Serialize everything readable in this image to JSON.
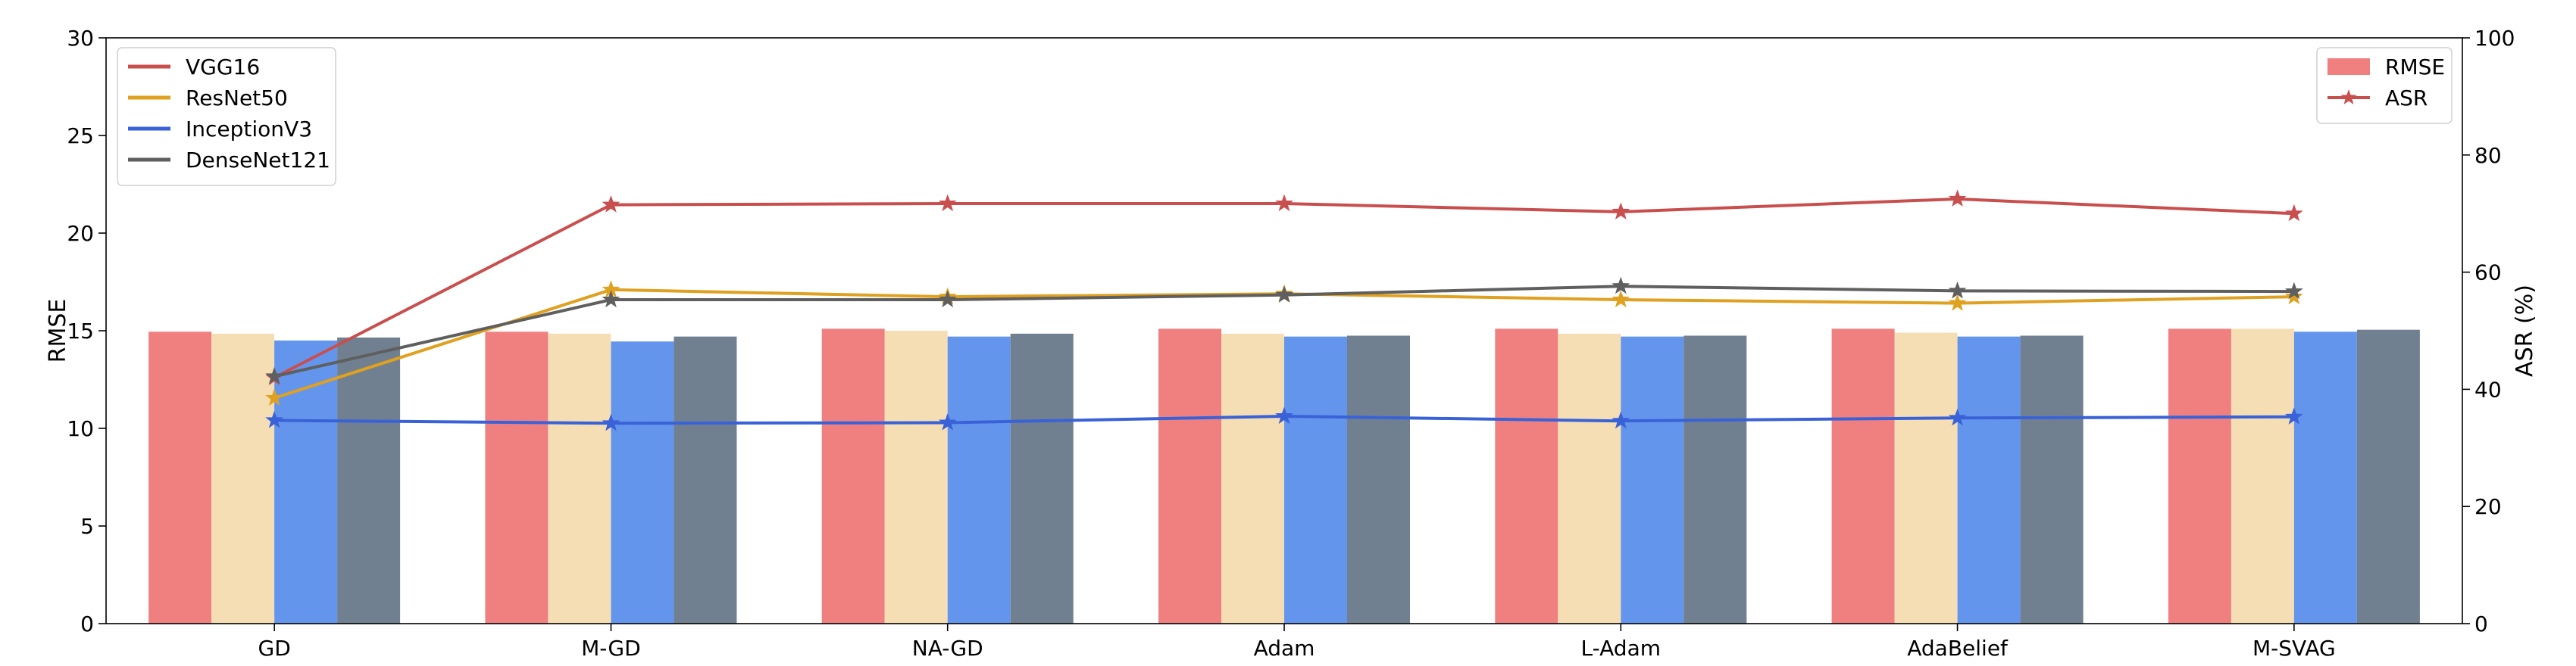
{
  "chart_data": {
    "type": "bar",
    "categories": [
      "GD",
      "M-GD",
      "NA-GD",
      "Adam",
      "L-Adam",
      "AdaBelief",
      "M-SVAG"
    ],
    "ylabel": "RMSE",
    "y2label": "ASR (%)",
    "ylim": [
      0,
      30
    ],
    "y2lim": [
      0,
      100
    ],
    "yticks": [
      "0",
      "5",
      "10",
      "15",
      "20",
      "25",
      "30"
    ],
    "y2ticks": [
      "0",
      "20",
      "40",
      "60",
      "80",
      "100"
    ],
    "grid": false,
    "models": [
      {
        "name": "VGG16",
        "line_color": "#c94f4f",
        "bar_color": "#f08080",
        "rmse": [
          14.95,
          14.95,
          15.1,
          15.1,
          15.1,
          15.1,
          15.1
        ],
        "asr": [
          42.0,
          71.5,
          71.7,
          71.7,
          70.3,
          72.5,
          70.0
        ]
      },
      {
        "name": "ResNet50",
        "line_color": "#e0a020",
        "bar_color": "#f5deb3",
        "rmse": [
          14.85,
          14.85,
          15.0,
          14.85,
          14.85,
          14.9,
          15.1
        ],
        "asr": [
          38.5,
          57.0,
          55.8,
          56.3,
          55.3,
          54.7,
          55.8
        ]
      },
      {
        "name": "InceptionV3",
        "line_color": "#3a62d8",
        "bar_color": "#6495ed",
        "rmse": [
          14.5,
          14.45,
          14.7,
          14.7,
          14.7,
          14.7,
          14.95
        ],
        "asr": [
          34.7,
          34.2,
          34.3,
          35.4,
          34.6,
          35.1,
          35.3
        ]
      },
      {
        "name": "DenseNet121",
        "line_color": "#5f5f5f",
        "bar_color": "#708090",
        "rmse": [
          14.65,
          14.7,
          14.85,
          14.75,
          14.75,
          14.75,
          15.05
        ],
        "asr": [
          42.2,
          55.3,
          55.3,
          56.1,
          57.6,
          56.8,
          56.7
        ]
      }
    ],
    "legend_models": {
      "placement": "top-left",
      "entries": [
        "VGG16",
        "ResNet50",
        "InceptionV3",
        "DenseNet121"
      ]
    },
    "legend_metrics": {
      "placement": "top-right",
      "entries": [
        "RMSE",
        "ASR"
      ],
      "bar_color": "#f08080",
      "line_color": "#c94f4f"
    }
  }
}
